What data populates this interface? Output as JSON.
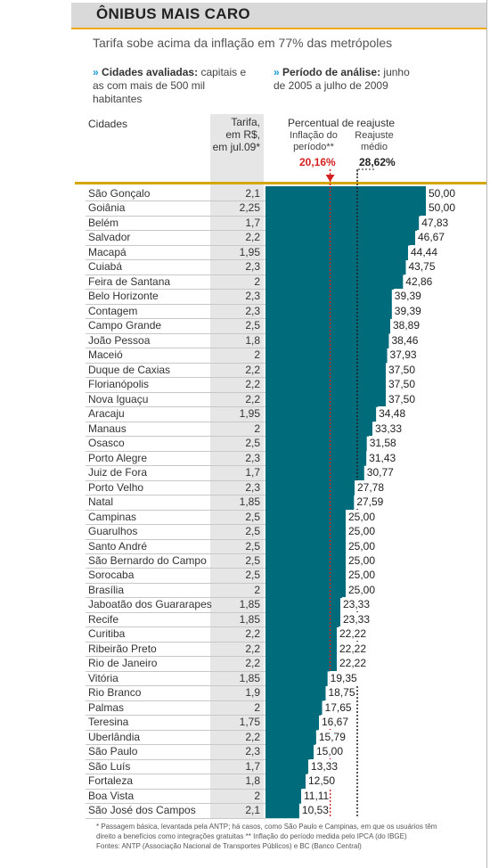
{
  "title": "ÔNIBUS MAIS CARO",
  "subtitle": "Tarifa sobe acima da inflação em 77% das metrópoles",
  "info_left_label": "Cidades avaliadas:",
  "info_left_text1": "capitais e",
  "info_left_text2": "as com mais de 500 mil habitantes",
  "info_right_label": "Período de análise:",
  "info_right_text1": "junho",
  "info_right_text2": "de 2005 a julho de 2009",
  "col_cities": "Cidades",
  "col_tarifa_1": "Tarifa,",
  "col_tarifa_2": "em R$,",
  "col_tarifa_3": "em jul.09*",
  "col_pct": "Percentual de reajuste",
  "inflation_label_1": "Inflação do",
  "inflation_label_2": "período**",
  "average_label_1": "Reajuste",
  "average_label_2": "médio",
  "inflation_display": "20,16%",
  "average_display": "28,62%",
  "footnote_1": "* Passagem básica, levantada pela ANTP; há casos, como São Paulo e Campinas, em que os usuários têm",
  "footnote_2": "direito a benefícios como integrações gratuitas   ** Inflação do período medida pelo IPCA (do IBGE)",
  "footnote_3": "Fontes: ANTP (Associação Nacional de Transportes Públicos) e BC (Banco Central)",
  "colors": {
    "bar": "#006b7a",
    "accent": "#d4a800",
    "inflation": "#d42020"
  },
  "chart_data": {
    "type": "bar",
    "orientation": "horizontal",
    "inflation": 20.16,
    "average": 28.62,
    "xlim": [
      0,
      50
    ],
    "rows": [
      {
        "city": "São Gonçalo",
        "fare": "2,1",
        "value": 50.0,
        "label": "50,00"
      },
      {
        "city": "Goiânia",
        "fare": "2,25",
        "value": 50.0,
        "label": "50,00"
      },
      {
        "city": "Belém",
        "fare": "1,7",
        "value": 47.83,
        "label": "47,83"
      },
      {
        "city": "Salvador",
        "fare": "2,2",
        "value": 46.67,
        "label": "46,67"
      },
      {
        "city": "Macapá",
        "fare": "1,95",
        "value": 44.44,
        "label": "44,44"
      },
      {
        "city": "Cuiabá",
        "fare": "2,3",
        "value": 43.75,
        "label": "43,75"
      },
      {
        "city": "Feira de Santana",
        "fare": "2",
        "value": 42.86,
        "label": "42,86"
      },
      {
        "city": "Belo Horizonte",
        "fare": "2,3",
        "value": 39.39,
        "label": "39,39"
      },
      {
        "city": "Contagem",
        "fare": "2,3",
        "value": 39.39,
        "label": "39,39"
      },
      {
        "city": "Campo Grande",
        "fare": "2,5",
        "value": 38.89,
        "label": "38,89"
      },
      {
        "city": "João Pessoa",
        "fare": "1,8",
        "value": 38.46,
        "label": "38,46"
      },
      {
        "city": "Maceió",
        "fare": "2",
        "value": 37.93,
        "label": "37,93"
      },
      {
        "city": "Duque de Caxias",
        "fare": "2,2",
        "value": 37.5,
        "label": "37,50"
      },
      {
        "city": "Florianópolis",
        "fare": "2,2",
        "value": 37.5,
        "label": "37,50"
      },
      {
        "city": "Nova Iguaçu",
        "fare": "2,2",
        "value": 37.5,
        "label": "37,50"
      },
      {
        "city": "Aracaju",
        "fare": "1,95",
        "value": 34.48,
        "label": "34,48"
      },
      {
        "city": "Manaus",
        "fare": "2",
        "value": 33.33,
        "label": "33,33"
      },
      {
        "city": "Osasco",
        "fare": "2,5",
        "value": 31.58,
        "label": "31,58"
      },
      {
        "city": "Porto Alegre",
        "fare": "2,3",
        "value": 31.43,
        "label": "31,43"
      },
      {
        "city": "Juiz de Fora",
        "fare": "1,7",
        "value": 30.77,
        "label": "30,77"
      },
      {
        "city": "Porto Velho",
        "fare": "2,3",
        "value": 27.78,
        "label": "27,78"
      },
      {
        "city": "Natal",
        "fare": "1,85",
        "value": 27.59,
        "label": "27,59"
      },
      {
        "city": "Campinas",
        "fare": "2,5",
        "value": 25.0,
        "label": "25,00"
      },
      {
        "city": "Guarulhos",
        "fare": "2,5",
        "value": 25.0,
        "label": "25,00"
      },
      {
        "city": "Santo André",
        "fare": "2,5",
        "value": 25.0,
        "label": "25,00"
      },
      {
        "city": "São Bernardo do Campo",
        "fare": "2,5",
        "value": 25.0,
        "label": "25,00"
      },
      {
        "city": "Sorocaba",
        "fare": "2,5",
        "value": 25.0,
        "label": "25,00"
      },
      {
        "city": "Brasília",
        "fare": "2",
        "value": 25.0,
        "label": "25,00"
      },
      {
        "city": "Jaboatão dos Guararapes",
        "fare": "1,85",
        "value": 23.33,
        "label": "23,33"
      },
      {
        "city": "Recife",
        "fare": "1,85",
        "value": 23.33,
        "label": "23,33"
      },
      {
        "city": "Curitiba",
        "fare": "2,2",
        "value": 22.22,
        "label": "22,22"
      },
      {
        "city": "Ribeirão Preto",
        "fare": "2,2",
        "value": 22.22,
        "label": "22,22"
      },
      {
        "city": "Rio de Janeiro",
        "fare": "2,2",
        "value": 22.22,
        "label": "22,22"
      },
      {
        "city": "Vitória",
        "fare": "1,85",
        "value": 19.35,
        "label": "19,35"
      },
      {
        "city": "Rio Branco",
        "fare": "1,9",
        "value": 18.75,
        "label": "18,75"
      },
      {
        "city": "Palmas",
        "fare": "2",
        "value": 17.65,
        "label": "17,65"
      },
      {
        "city": "Teresina",
        "fare": "1,75",
        "value": 16.67,
        "label": "16,67"
      },
      {
        "city": "Uberlândia",
        "fare": "2,2",
        "value": 15.79,
        "label": "15,79"
      },
      {
        "city": "São Paulo",
        "fare": "2,3",
        "value": 15.0,
        "label": "15,00"
      },
      {
        "city": "São Luís",
        "fare": "1,7",
        "value": 13.33,
        "label": "13,33"
      },
      {
        "city": "Fortaleza",
        "fare": "1,8",
        "value": 12.5,
        "label": "12,50"
      },
      {
        "city": "Boa Vista",
        "fare": "2",
        "value": 11.11,
        "label": "11,11"
      },
      {
        "city": "São José dos Campos",
        "fare": "2,1",
        "value": 10.53,
        "label": "10,53"
      }
    ]
  }
}
